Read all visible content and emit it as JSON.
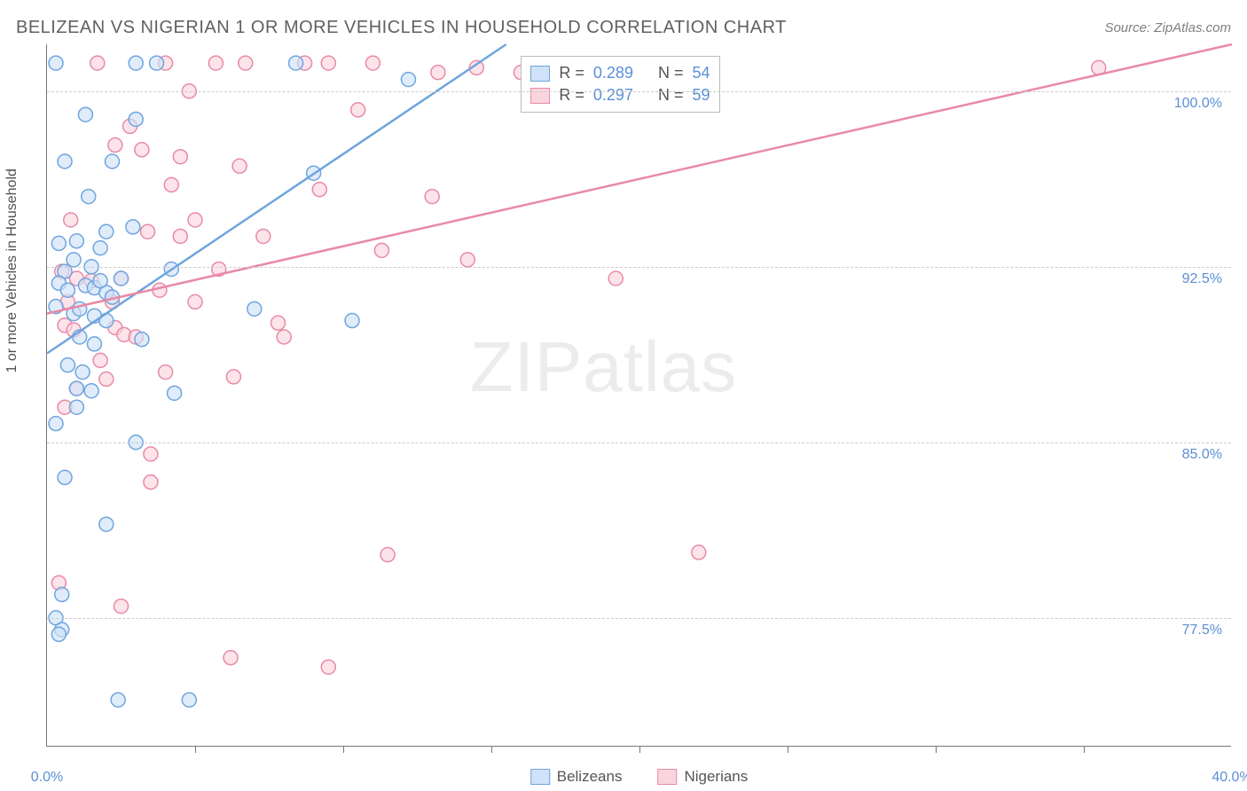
{
  "title": "BELIZEAN VS NIGERIAN 1 OR MORE VEHICLES IN HOUSEHOLD CORRELATION CHART",
  "source": "Source: ZipAtlas.com",
  "watermark": {
    "zip": "ZIP",
    "atlas": "atlas"
  },
  "ylabel": "1 or more Vehicles in Household",
  "chart": {
    "type": "scatter",
    "xlim": [
      0,
      40
    ],
    "ylim": [
      72,
      102
    ],
    "xticks_label": [
      0,
      40
    ],
    "xticks_minor": [
      5,
      10,
      15,
      20,
      25,
      30,
      35
    ],
    "yticks_label": [
      77.5,
      85.0,
      92.5,
      100.0
    ],
    "background_color": "#ffffff",
    "grid_color": "#cccccc",
    "axis_color": "#777777",
    "tick_label_color": "#5b8fd6",
    "marker_radius": 8,
    "marker_stroke_width": 1.5,
    "line_width": 2.5,
    "label_fontsize": 16,
    "title_fontsize": 20
  },
  "series": {
    "belizeans": {
      "label": "Belizeans",
      "fill": "#cfe2f7",
      "stroke": "#6fa5de",
      "R": "0.289",
      "N": "54",
      "trend": {
        "x1": 0,
        "y1": 88.8,
        "x2": 15.5,
        "y2": 102
      },
      "points": [
        [
          0.3,
          101.2
        ],
        [
          3.0,
          101.2
        ],
        [
          3.7,
          101.2
        ],
        [
          8.4,
          101.2
        ],
        [
          12.2,
          100.5
        ],
        [
          1.3,
          99.0
        ],
        [
          3.0,
          98.8
        ],
        [
          0.6,
          97.0
        ],
        [
          2.2,
          97.0
        ],
        [
          1.4,
          95.5
        ],
        [
          9.0,
          96.5
        ],
        [
          0.4,
          93.5
        ],
        [
          1.0,
          93.6
        ],
        [
          1.8,
          93.3
        ],
        [
          2.0,
          94.0
        ],
        [
          0.6,
          92.3
        ],
        [
          1.5,
          92.5
        ],
        [
          0.4,
          91.8
        ],
        [
          0.7,
          91.5
        ],
        [
          1.3,
          91.7
        ],
        [
          1.6,
          91.6
        ],
        [
          2.0,
          91.4
        ],
        [
          2.2,
          91.2
        ],
        [
          2.9,
          94.2
        ],
        [
          4.2,
          92.4
        ],
        [
          0.3,
          90.8
        ],
        [
          0.9,
          90.5
        ],
        [
          1.1,
          90.7
        ],
        [
          1.6,
          90.4
        ],
        [
          2.0,
          90.2
        ],
        [
          3.2,
          89.4
        ],
        [
          7.0,
          90.7
        ],
        [
          10.3,
          90.2
        ],
        [
          0.7,
          88.3
        ],
        [
          1.1,
          89.5
        ],
        [
          1.6,
          89.2
        ],
        [
          1.0,
          87.3
        ],
        [
          1.5,
          87.2
        ],
        [
          4.3,
          87.1
        ],
        [
          0.3,
          85.8
        ],
        [
          3.0,
          85.0
        ],
        [
          0.6,
          83.5
        ],
        [
          2.0,
          81.5
        ],
        [
          0.5,
          78.5
        ],
        [
          0.3,
          77.5
        ],
        [
          0.5,
          77.0
        ],
        [
          0.4,
          76.8
        ],
        [
          2.4,
          74.0
        ],
        [
          4.8,
          74.0
        ],
        [
          1.8,
          91.9
        ],
        [
          0.9,
          92.8
        ],
        [
          1.2,
          88.0
        ],
        [
          2.5,
          92.0
        ],
        [
          1.0,
          86.5
        ]
      ]
    },
    "nigerians": {
      "label": "Nigerians",
      "fill": "#fad5df",
      "stroke": "#e88aa6",
      "R": "0.297",
      "N": "59",
      "trend": {
        "x1": 0,
        "y1": 90.5,
        "x2": 40,
        "y2": 102
      },
      "points": [
        [
          1.7,
          101.2
        ],
        [
          4.0,
          101.2
        ],
        [
          5.7,
          101.2
        ],
        [
          6.7,
          101.2
        ],
        [
          8.7,
          101.2
        ],
        [
          9.5,
          101.2
        ],
        [
          11.0,
          101.2
        ],
        [
          13.2,
          100.8
        ],
        [
          16.0,
          100.8
        ],
        [
          35.5,
          101.0
        ],
        [
          4.8,
          100.0
        ],
        [
          10.5,
          99.2
        ],
        [
          2.8,
          98.5
        ],
        [
          2.3,
          97.7
        ],
        [
          3.2,
          97.5
        ],
        [
          4.5,
          97.2
        ],
        [
          6.5,
          96.8
        ],
        [
          9.2,
          95.8
        ],
        [
          13.0,
          95.5
        ],
        [
          0.8,
          94.5
        ],
        [
          3.4,
          94.0
        ],
        [
          4.5,
          93.8
        ],
        [
          7.3,
          93.8
        ],
        [
          11.3,
          93.2
        ],
        [
          0.5,
          92.3
        ],
        [
          1.0,
          92.0
        ],
        [
          1.5,
          91.9
        ],
        [
          2.5,
          92.0
        ],
        [
          5.8,
          92.4
        ],
        [
          14.2,
          92.8
        ],
        [
          19.2,
          92.0
        ],
        [
          2.2,
          91.0
        ],
        [
          5.0,
          91.0
        ],
        [
          0.6,
          90.0
        ],
        [
          0.9,
          89.8
        ],
        [
          2.3,
          89.9
        ],
        [
          2.6,
          89.6
        ],
        [
          3.0,
          89.5
        ],
        [
          7.8,
          90.1
        ],
        [
          4.0,
          88.0
        ],
        [
          2.0,
          87.7
        ],
        [
          1.0,
          87.3
        ],
        [
          0.6,
          86.5
        ],
        [
          6.3,
          87.8
        ],
        [
          3.5,
          84.5
        ],
        [
          3.5,
          83.3
        ],
        [
          22.0,
          80.3
        ],
        [
          11.5,
          80.2
        ],
        [
          0.4,
          79.0
        ],
        [
          2.5,
          78.0
        ],
        [
          6.2,
          75.8
        ],
        [
          9.5,
          75.4
        ],
        [
          14.5,
          101.0
        ],
        [
          5.0,
          94.5
        ],
        [
          3.8,
          91.5
        ],
        [
          1.8,
          88.5
        ],
        [
          0.7,
          91.0
        ],
        [
          4.2,
          96.0
        ],
        [
          8.0,
          89.5
        ]
      ]
    }
  },
  "legend_top": {
    "rows": [
      {
        "key": "belizeans",
        "R_label": "R =",
        "N_label": "N ="
      },
      {
        "key": "nigerians",
        "R_label": "R =",
        "N_label": "N ="
      }
    ]
  },
  "xaxis_format": {
    "suffix": "%",
    "decimals": 1
  },
  "yaxis_format": {
    "suffix": "%",
    "decimals": 1
  }
}
